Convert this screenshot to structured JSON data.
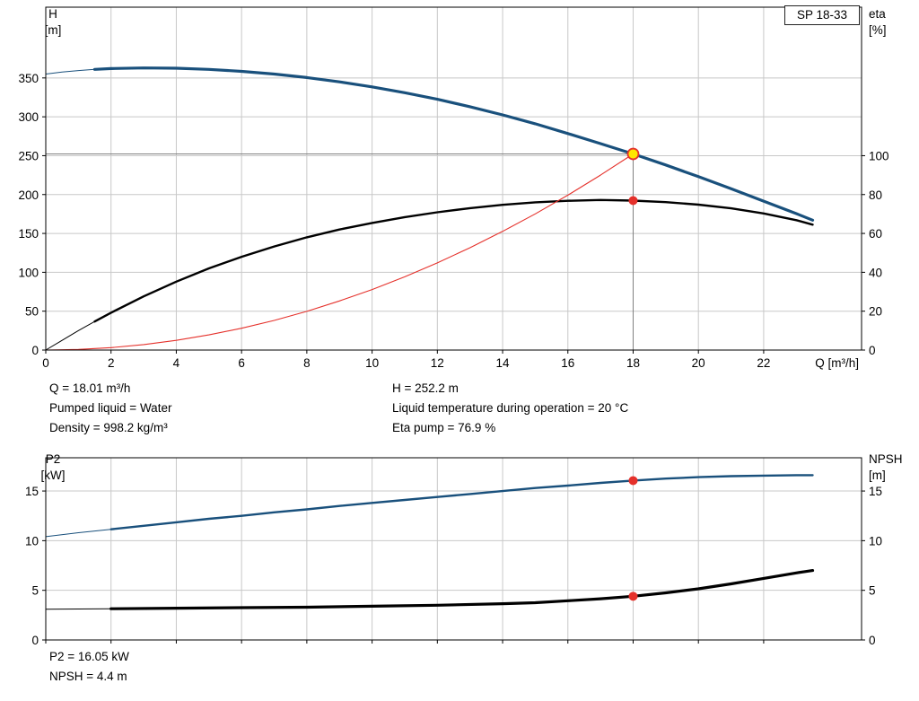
{
  "colors": {
    "curve_blue": "#19507c",
    "curve_black": "#000000",
    "curve_red": "#e5312b",
    "marker_red": "#e5312b",
    "duty_fill": "#ffe600",
    "grid": "#c8c8c8",
    "frame": "#000000",
    "crosshair": "#808080",
    "text": "#000000"
  },
  "annotations": {
    "top_left": [
      "Q = 18.01 m³/h",
      "Pumped liquid = Water",
      "Density = 998.2 kg/m³"
    ],
    "top_right": [
      "H = 252.2 m",
      "Liquid temperature during operation = 20 °C",
      "Eta pump = 76.9 %"
    ],
    "bottom": [
      "P2 = 16.05 kW",
      "NPSH = 4.4 m"
    ]
  },
  "chart_data": [
    {
      "name": "qh-eta-chart",
      "type": "line",
      "title": "SP 18-33",
      "xlabel": "Q [m³/h]",
      "ylabel_left_lines": [
        "H",
        "[m]"
      ],
      "ylabel_right_lines": [
        "eta",
        "[%]"
      ],
      "xlim": [
        0,
        25
      ],
      "ylim_left": [
        0,
        441
      ],
      "ylim_right": [
        0,
        176.4
      ],
      "x_ticks": [
        0,
        2,
        4,
        6,
        8,
        10,
        12,
        14,
        16,
        18,
        20,
        22
      ],
      "x_tick_labels": true,
      "y_ticks_left": [
        0,
        50,
        100,
        150,
        200,
        250,
        300,
        350
      ],
      "y_ticks_right": [
        0,
        20,
        40,
        60,
        80,
        100
      ],
      "series": [
        {
          "name": "H",
          "axis": "left",
          "color": "#19507c",
          "width": 3.2,
          "thin_until": 1.8,
          "points": [
            [
              0,
              355
            ],
            [
              0.5,
              357.5
            ],
            [
              1,
              359.5
            ],
            [
              1.5,
              361
            ],
            [
              2,
              362
            ],
            [
              3,
              362.8
            ],
            [
              4,
              362.5
            ],
            [
              5,
              361
            ],
            [
              6,
              358.5
            ],
            [
              7,
              355
            ],
            [
              8,
              350.5
            ],
            [
              9,
              345
            ],
            [
              10,
              338.5
            ],
            [
              11,
              331
            ],
            [
              12,
              322.5
            ],
            [
              13,
              313
            ],
            [
              14,
              302.5
            ],
            [
              15,
              291
            ],
            [
              16,
              278.5
            ],
            [
              17,
              265.5
            ],
            [
              18,
              252.2
            ],
            [
              19,
              238
            ],
            [
              20,
              223
            ],
            [
              21,
              207.5
            ],
            [
              22,
              191.5
            ],
            [
              23,
              175.5
            ],
            [
              23.5,
              167
            ]
          ]
        },
        {
          "name": "eta",
          "axis": "right",
          "color": "#000000",
          "width": 2.4,
          "thin_until": 1.7,
          "points": [
            [
              0,
              0
            ],
            [
              0.5,
              5
            ],
            [
              1,
              10
            ],
            [
              1.5,
              14.7
            ],
            [
              2,
              19.2
            ],
            [
              3,
              27.6
            ],
            [
              4,
              35.2
            ],
            [
              5,
              42
            ],
            [
              6,
              48
            ],
            [
              7,
              53.3
            ],
            [
              8,
              58
            ],
            [
              9,
              62
            ],
            [
              10,
              65.4
            ],
            [
              11,
              68.4
            ],
            [
              12,
              70.9
            ],
            [
              13,
              73
            ],
            [
              14,
              74.7
            ],
            [
              15,
              76
            ],
            [
              16,
              76.8
            ],
            [
              17,
              77.2
            ],
            [
              18,
              76.9
            ],
            [
              19,
              76.1
            ],
            [
              20,
              74.8
            ],
            [
              21,
              72.9
            ],
            [
              22,
              70.3
            ],
            [
              23,
              66.8
            ],
            [
              23.5,
              64.5
            ]
          ]
        },
        {
          "name": "system-curve",
          "axis": "left",
          "color": "#e5312b",
          "width": 1.1,
          "points": [
            [
              0,
              0
            ],
            [
              1,
              0.8
            ],
            [
              2,
              3.1
            ],
            [
              3,
              7
            ],
            [
              4,
              12.5
            ],
            [
              5,
              19.5
            ],
            [
              6,
              28
            ],
            [
              7,
              38.1
            ],
            [
              8,
              49.8
            ],
            [
              9,
              63.1
            ],
            [
              10,
              77.8
            ],
            [
              11,
              94.2
            ],
            [
              12,
              112.1
            ],
            [
              13,
              131.6
            ],
            [
              14,
              152.6
            ],
            [
              15,
              175.1
            ],
            [
              16,
              199.3
            ],
            [
              17,
              225
            ],
            [
              18,
              252.2
            ]
          ]
        }
      ],
      "crosshair": {
        "x": 18,
        "y": 252.2
      },
      "markers": [
        {
          "name": "duty-point",
          "style": "duty",
          "axis": "left",
          "x": 18,
          "y": 252.2
        },
        {
          "name": "eta-point",
          "style": "dot",
          "axis": "right",
          "x": 18,
          "y": 76.9
        }
      ]
    },
    {
      "name": "p2-npsh-chart",
      "type": "line",
      "title": "",
      "xlabel": "",
      "ylabel_left_lines": [
        "P2",
        "[kW]"
      ],
      "ylabel_right_lines": [
        "NPSH",
        "[m]"
      ],
      "xlim": [
        0,
        25
      ],
      "ylim_left": [
        0,
        18.35
      ],
      "ylim_right": [
        0,
        18.35
      ],
      "x_ticks": [
        0,
        2,
        4,
        6,
        8,
        10,
        12,
        14,
        16,
        18,
        20,
        22
      ],
      "x_tick_labels": false,
      "y_ticks_left": [
        0,
        5,
        10,
        15
      ],
      "y_ticks_right": [
        0,
        5,
        10,
        15
      ],
      "series": [
        {
          "name": "P2",
          "axis": "left",
          "color": "#19507c",
          "width": 2.4,
          "thin_until": 1.6,
          "points": [
            [
              0,
              10.4
            ],
            [
              1,
              10.8
            ],
            [
              2,
              11.15
            ],
            [
              3,
              11.5
            ],
            [
              4,
              11.85
            ],
            [
              5,
              12.2
            ],
            [
              6,
              12.5
            ],
            [
              7,
              12.85
            ],
            [
              8,
              13.15
            ],
            [
              9,
              13.5
            ],
            [
              10,
              13.8
            ],
            [
              11,
              14.1
            ],
            [
              12,
              14.4
            ],
            [
              13,
              14.7
            ],
            [
              14,
              15
            ],
            [
              15,
              15.3
            ],
            [
              16,
              15.55
            ],
            [
              17,
              15.82
            ],
            [
              18,
              16.05
            ],
            [
              19,
              16.25
            ],
            [
              20,
              16.4
            ],
            [
              21,
              16.5
            ],
            [
              22,
              16.55
            ],
            [
              23,
              16.6
            ],
            [
              23.5,
              16.6
            ]
          ]
        },
        {
          "name": "NPSH",
          "axis": "right",
          "color": "#000000",
          "width": 3.2,
          "thin_until": 1.5,
          "points": [
            [
              0,
              3.1
            ],
            [
              2,
              3.15
            ],
            [
              4,
              3.2
            ],
            [
              6,
              3.25
            ],
            [
              8,
              3.3
            ],
            [
              10,
              3.4
            ],
            [
              12,
              3.5
            ],
            [
              14,
              3.65
            ],
            [
              15,
              3.75
            ],
            [
              16,
              3.95
            ],
            [
              17,
              4.15
            ],
            [
              18,
              4.4
            ],
            [
              19,
              4.75
            ],
            [
              20,
              5.15
            ],
            [
              21,
              5.65
            ],
            [
              22,
              6.2
            ],
            [
              23,
              6.75
            ],
            [
              23.5,
              7.0
            ]
          ]
        }
      ],
      "markers": [
        {
          "name": "p2-point",
          "style": "dot",
          "axis": "left",
          "x": 18,
          "y": 16.05
        },
        {
          "name": "npsh-point",
          "style": "dot",
          "axis": "right",
          "x": 18,
          "y": 4.4
        }
      ]
    }
  ]
}
